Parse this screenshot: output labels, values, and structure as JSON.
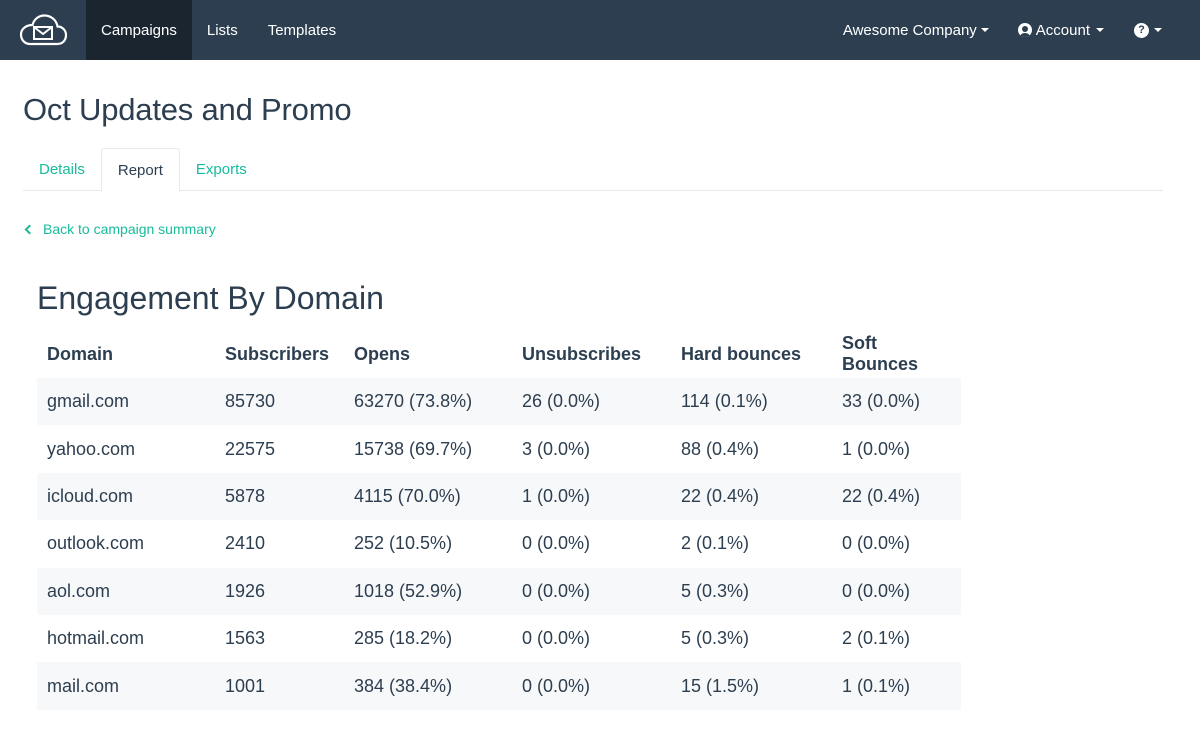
{
  "navbar": {
    "brand_icon": "cloud-mail-icon",
    "links": [
      {
        "label": "Campaigns",
        "active": true
      },
      {
        "label": "Lists",
        "active": false
      },
      {
        "label": "Templates",
        "active": false
      }
    ],
    "company": "Awesome Company",
    "account": "Account",
    "help_icon": "?"
  },
  "page": {
    "title": "Oct Updates and Promo",
    "tabs": [
      {
        "label": "Details",
        "active": false
      },
      {
        "label": "Report",
        "active": true
      },
      {
        "label": "Exports",
        "active": false
      }
    ],
    "back_link": "Back to campaign summary"
  },
  "engagement": {
    "title": "Engagement By Domain",
    "columns": [
      "Domain",
      "Subscribers",
      "Opens",
      "Unsubscribes",
      "Hard bounces",
      "Soft Bounces"
    ],
    "rows": [
      [
        "gmail.com",
        "85730",
        "63270 (73.8%)",
        "26 (0.0%)",
        "114 (0.1%)",
        "33 (0.0%)"
      ],
      [
        "yahoo.com",
        "22575",
        "15738 (69.7%)",
        "3 (0.0%)",
        "88 (0.4%)",
        "1 (0.0%)"
      ],
      [
        "icloud.com",
        "5878",
        "4115 (70.0%)",
        "1 (0.0%)",
        "22 (0.4%)",
        "22 (0.4%)"
      ],
      [
        "outlook.com",
        "2410",
        "252 (10.5%)",
        "0 (0.0%)",
        "2 (0.1%)",
        "0 (0.0%)"
      ],
      [
        "aol.com",
        "1926",
        "1018 (52.9%)",
        "0 (0.0%)",
        "5 (0.3%)",
        "0 (0.0%)"
      ],
      [
        "hotmail.com",
        "1563",
        "285 (18.2%)",
        "0 (0.0%)",
        "5 (0.3%)",
        "2 (0.1%)"
      ],
      [
        "mail.com",
        "1001",
        "384 (38.4%)",
        "0 (0.0%)",
        "15 (1.5%)",
        "1 (0.1%)"
      ]
    ]
  },
  "colors": {
    "navbar_bg": "#2c3e50",
    "navbar_active": "#1a252f",
    "accent": "#18bc9c",
    "text": "#2c3e50",
    "stripe": "#f7f8f9"
  }
}
